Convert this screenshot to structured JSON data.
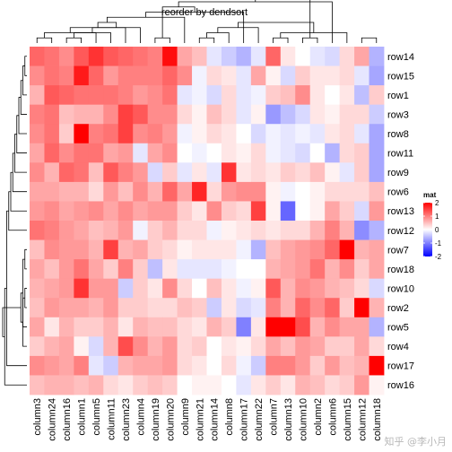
{
  "chart_data": {
    "type": "heatmap",
    "title": "reorder by dendsort",
    "rows": [
      "row14",
      "row15",
      "row1",
      "row3",
      "row8",
      "row11",
      "row9",
      "row6",
      "row13",
      "row12",
      "row7",
      "row18",
      "row10",
      "row2",
      "row5",
      "row4",
      "row17",
      "row16"
    ],
    "columns": [
      "column3",
      "column24",
      "column16",
      "column1",
      "column5",
      "column11",
      "column23",
      "column4",
      "column19",
      "column20",
      "column9",
      "column21",
      "column14",
      "column8",
      "column17",
      "column22",
      "column7",
      "column13",
      "column10",
      "column2",
      "column6",
      "column15",
      "column12",
      "column18"
    ],
    "values": [
      [
        1.2,
        1.1,
        0.9,
        1.3,
        1.6,
        1.3,
        1.2,
        1.1,
        1.0,
        1.9,
        0.7,
        0.5,
        -0.2,
        -0.4,
        -0.6,
        -0.2,
        1.2,
        0.2,
        0.0,
        -0.2,
        -0.3,
        0.3,
        0.7,
        -0.6
      ],
      [
        0.9,
        1.1,
        1.0,
        1.8,
        1.2,
        0.8,
        1.0,
        1.0,
        1.0,
        1.2,
        0.9,
        -0.1,
        0.3,
        0.2,
        -0.2,
        0.7,
        0.1,
        -0.3,
        0.4,
        0.2,
        0.2,
        0.3,
        -0.2,
        -0.7
      ],
      [
        0.6,
        1.3,
        1.2,
        1.1,
        1.1,
        1.1,
        1.0,
        0.8,
        0.9,
        1.1,
        -0.2,
        -0.1,
        -0.3,
        0.3,
        -0.2,
        -0.1,
        0.4,
        0.5,
        0.9,
        0.2,
        0.0,
        0.2,
        -0.5,
        0.4
      ],
      [
        1.0,
        1.1,
        0.5,
        0.6,
        0.6,
        0.9,
        1.5,
        1.3,
        0.9,
        0.9,
        0.3,
        0.1,
        0.5,
        0.3,
        -0.2,
        0.1,
        -0.8,
        -0.5,
        -0.3,
        0.2,
        0.1,
        0.3,
        0.3,
        -0.4
      ],
      [
        0.9,
        1.1,
        0.4,
        2.0,
        1.0,
        1.1,
        1.5,
        0.9,
        1.0,
        0.8,
        -0.1,
        0.1,
        0.3,
        0.2,
        0.0,
        -0.3,
        -0.1,
        -0.2,
        -0.1,
        -0.2,
        0.2,
        0.3,
        -0.2,
        -0.7
      ],
      [
        0.7,
        1.2,
        0.9,
        1.1,
        1.1,
        0.7,
        0.8,
        -0.2,
        0.7,
        0.9,
        0.0,
        -0.1,
        0.0,
        0.2,
        0.1,
        0.3,
        -0.1,
        -0.2,
        -0.3,
        0.0,
        -0.6,
        0.3,
        0.4,
        -0.7
      ],
      [
        0.9,
        0.6,
        1.2,
        1.1,
        0.5,
        1.3,
        1.0,
        0.8,
        -0.3,
        0.4,
        -0.2,
        0.2,
        -0.2,
        1.6,
        0.2,
        0.3,
        0.2,
        0.4,
        0.3,
        0.5,
        0.1,
        -0.2,
        0.4,
        -0.7
      ],
      [
        0.7,
        0.7,
        0.6,
        0.6,
        0.3,
        0.8,
        0.5,
        0.9,
        0.6,
        1.2,
        0.7,
        1.7,
        0.3,
        0.8,
        0.9,
        0.9,
        0.1,
        -0.1,
        0.0,
        0.1,
        0.3,
        0.3,
        0.3,
        0.5
      ],
      [
        0.8,
        0.9,
        0.7,
        0.8,
        0.9,
        0.7,
        0.9,
        0.7,
        0.8,
        0.8,
        0.4,
        0.2,
        0.9,
        0.4,
        0.3,
        1.5,
        0.1,
        -1.2,
        0.0,
        0.1,
        0.7,
        0.4,
        -0.3,
        0.8
      ],
      [
        1.1,
        1.0,
        0.8,
        0.7,
        0.5,
        0.6,
        0.8,
        -0.1,
        0.4,
        0.6,
        0.3,
        0.3,
        -0.1,
        0.1,
        0.2,
        0.3,
        0.2,
        0.3,
        0.3,
        0.6,
        1.0,
        0.6,
        -0.9,
        -0.6
      ],
      [
        0.5,
        0.9,
        0.8,
        0.8,
        0.6,
        1.5,
        0.6,
        0.7,
        0.4,
        0.3,
        0.1,
        0.2,
        0.2,
        0.2,
        -0.1,
        -0.6,
        0.5,
        0.7,
        0.8,
        0.9,
        1.2,
        2.3,
        0.6,
        0.7
      ],
      [
        0.7,
        0.5,
        0.8,
        1.1,
        0.7,
        0.4,
        1.0,
        0.4,
        -0.5,
        0.2,
        -0.2,
        -0.2,
        -0.2,
        -0.1,
        0.0,
        0.0,
        0.6,
        0.7,
        0.8,
        1.1,
        0.6,
        0.9,
        0.4,
        0.7
      ],
      [
        0.6,
        0.7,
        0.8,
        1.6,
        0.8,
        0.8,
        -0.4,
        0.4,
        0.2,
        0.9,
        0.3,
        0.0,
        0.5,
        0.2,
        -0.1,
        0.1,
        1.3,
        0.6,
        0.9,
        0.8,
        0.6,
        0.5,
        0.3,
        -0.3
      ],
      [
        0.5,
        0.8,
        0.7,
        0.7,
        0.6,
        0.8,
        0.4,
        0.4,
        0.3,
        0.3,
        0.5,
        0.4,
        -0.4,
        0.2,
        -0.3,
        -0.2,
        1.0,
        0.6,
        1.2,
        0.9,
        1.2,
        0.4,
        2.1,
        0.6
      ],
      [
        0.7,
        0.2,
        0.6,
        0.4,
        0.4,
        0.6,
        0.2,
        0.6,
        0.5,
        0.5,
        0.3,
        0.2,
        0.6,
        0.4,
        -1.0,
        0.2,
        2.2,
        2.0,
        1.4,
        0.6,
        0.9,
        0.7,
        0.7,
        -0.6
      ],
      [
        0.4,
        0.6,
        0.7,
        0.1,
        -0.3,
        0.6,
        1.4,
        0.9,
        0.6,
        0.8,
        0.3,
        0.4,
        0.0,
        0.2,
        0.1,
        0.3,
        0.7,
        0.5,
        0.8,
        0.7,
        0.4,
        0.4,
        0.7,
        0.3
      ],
      [
        0.9,
        0.8,
        0.7,
        1.0,
        -0.2,
        -0.4,
        0.6,
        0.7,
        0.7,
        0.8,
        0.3,
        0.2,
        0.0,
        0.3,
        -0.1,
        -0.4,
        1.0,
        1.0,
        0.8,
        0.4,
        0.8,
        0.5,
        0.6,
        2.3
      ],
      [
        0.5,
        0.6,
        0.6,
        0.5,
        0.6,
        0.3,
        0.2,
        0.4,
        0.5,
        0.4,
        0.0,
        0.1,
        0.1,
        0.0,
        -0.2,
        0.2,
        0.4,
        0.2,
        0.6,
        0.5,
        0.3,
        0.4,
        0.8,
        0.1
      ]
    ],
    "legend": {
      "title": "mat",
      "ticks": [
        2,
        1,
        0,
        -1,
        -2
      ],
      "range": [
        -2,
        2
      ],
      "colors": {
        "low": "#0000ff",
        "mid": "#ffffff",
        "high": "#ff0000"
      },
      "placement": "right"
    },
    "col_dendrogram": {
      "merges": [
        [
          0,
          1
        ],
        [
          2,
          3
        ],
        [
          24,
          4
        ],
        [
          25,
          5
        ],
        [
          26,
          6
        ],
        [
          27,
          7
        ],
        [
          8,
          9
        ],
        [
          28,
          29
        ],
        [
          11,
          12
        ],
        [
          10,
          31
        ],
        [
          32,
          13
        ],
        [
          33,
          14
        ],
        [
          34,
          15
        ],
        [
          30,
          35
        ],
        [
          16,
          17
        ],
        [
          18,
          19
        ],
        [
          37,
          20
        ],
        [
          38,
          21
        ],
        [
          22,
          23
        ],
        [
          39,
          40
        ],
        [
          36,
          41
        ]
      ]
    },
    "row_dendrogram": {
      "merges": [
        [
          0,
          1
        ],
        [
          18,
          2
        ],
        [
          19,
          3
        ],
        [
          20,
          4
        ],
        [
          21,
          5
        ],
        [
          22,
          6
        ],
        [
          23,
          7
        ],
        [
          24,
          8
        ],
        [
          25,
          9
        ],
        [
          10,
          11
        ],
        [
          12,
          13
        ],
        [
          27,
          14
        ],
        [
          28,
          15
        ],
        [
          26,
          16
        ],
        [
          29,
          30
        ],
        [
          31,
          17
        ],
        [
          32,
          33
        ]
      ]
    }
  },
  "watermark": "知乎 @李小月"
}
